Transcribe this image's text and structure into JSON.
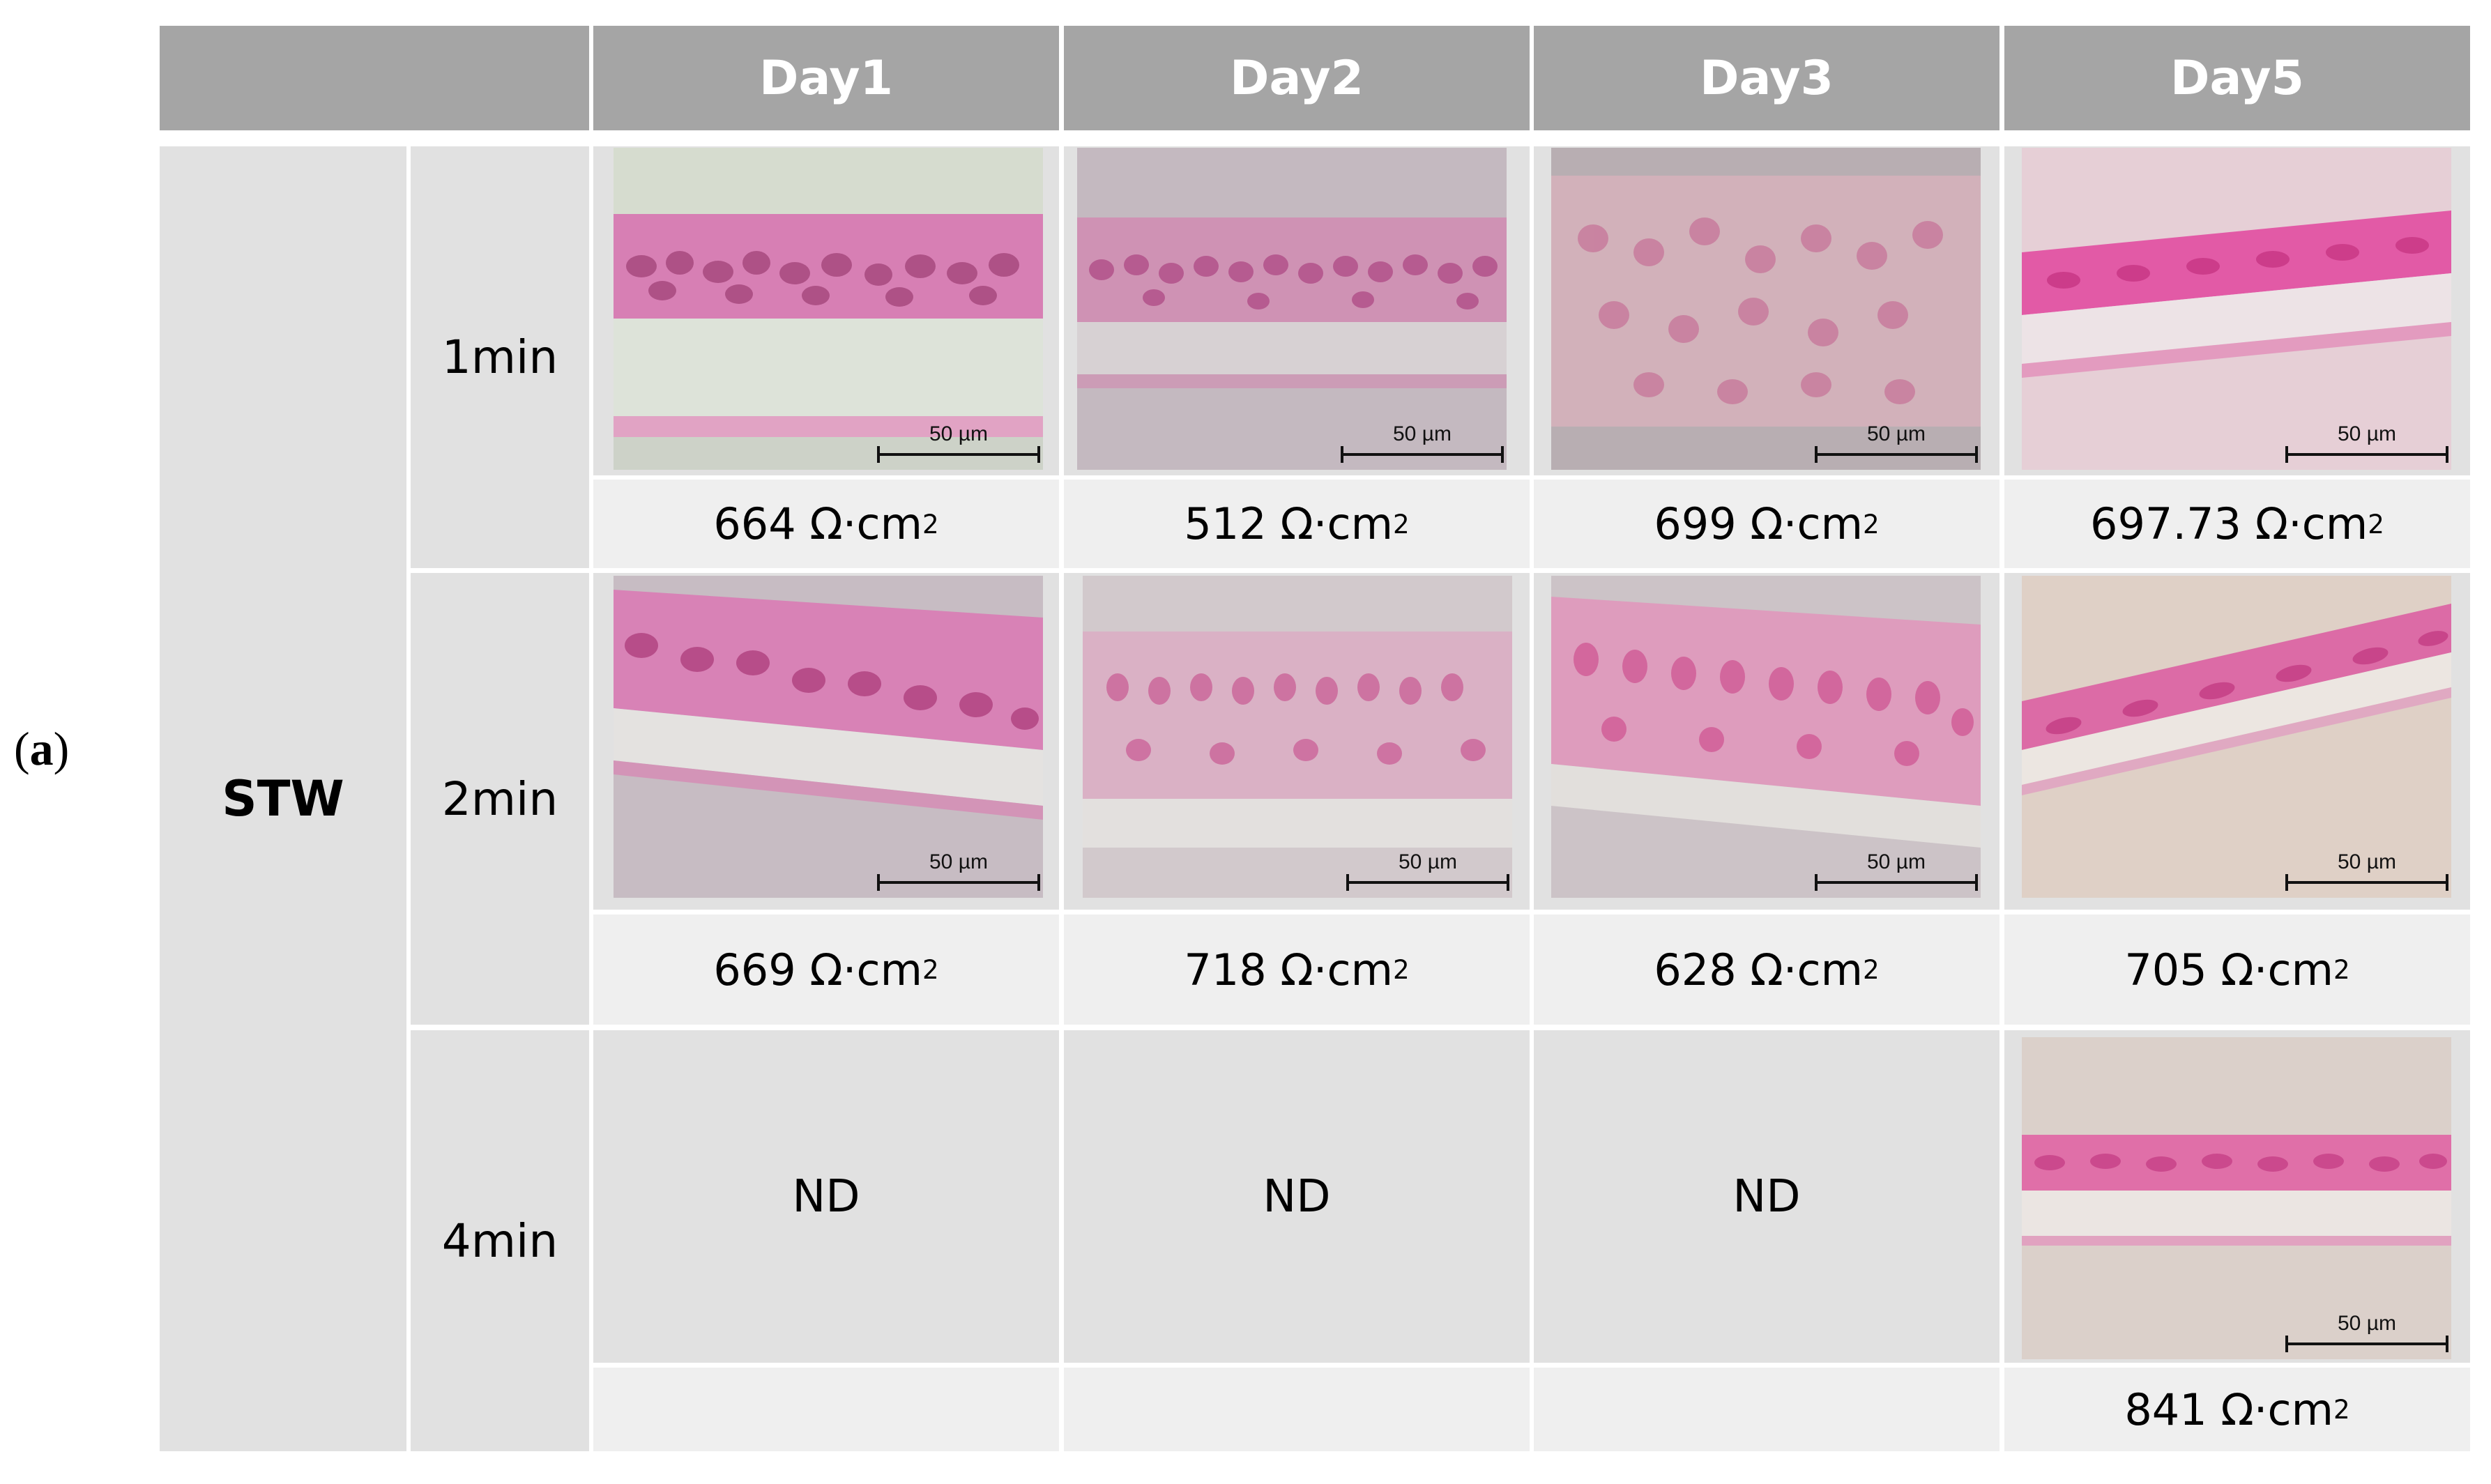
{
  "panel_label": "a",
  "columns": [
    "Day1",
    "Day2",
    "Day3",
    "Day5"
  ],
  "group": "STW",
  "rows": [
    {
      "time": "1min",
      "cells": [
        {
          "value": "664",
          "unit": "Ω·cm",
          "exp": "2",
          "scale": "50 µm"
        },
        {
          "value": "512",
          "unit": "Ω·cm",
          "exp": "2",
          "scale": "50 µm"
        },
        {
          "value": "699",
          "unit": "Ω·cm",
          "exp": "2",
          "scale": "50 µm"
        },
        {
          "value": "697.73",
          "unit": "Ω·cm",
          "exp": "2",
          "scale": "50 µm"
        }
      ]
    },
    {
      "time": "2min",
      "cells": [
        {
          "value": "669",
          "unit": "Ω·cm",
          "exp": "2",
          "scale": "50 µm"
        },
        {
          "value": "718",
          "unit": "Ω·cm",
          "exp": "2",
          "scale": "50 µm"
        },
        {
          "value": "628",
          "unit": "Ω·cm",
          "exp": "2",
          "scale": "50 µm"
        },
        {
          "value": "705",
          "unit": "Ω·cm",
          "exp": "2",
          "scale": "50 µm"
        }
      ]
    },
    {
      "time": "4min",
      "cells": [
        {
          "nd": "ND"
        },
        {
          "nd": "ND"
        },
        {
          "nd": "ND"
        },
        {
          "value": "841",
          "unit": "Ω·cm",
          "exp": "2",
          "scale": "50 µm"
        }
      ]
    }
  ]
}
